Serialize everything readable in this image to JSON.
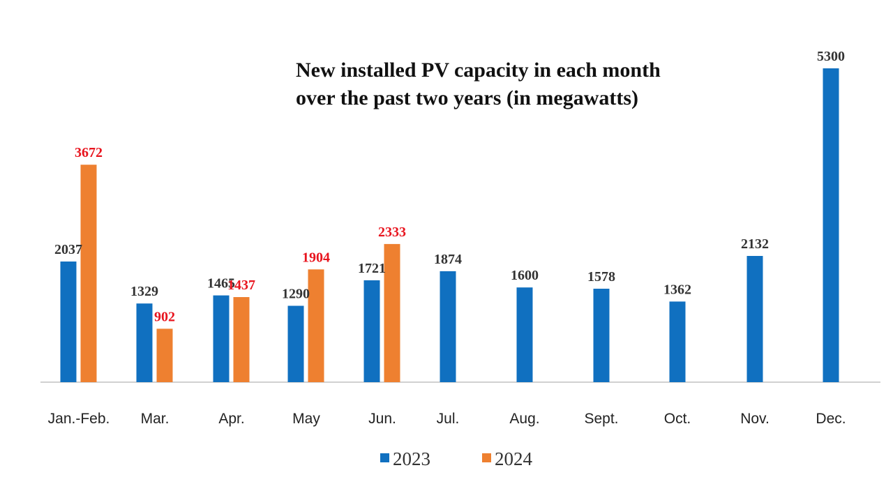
{
  "chart_data": {
    "type": "bar",
    "title_lines": [
      "New installed PV capacity in each month",
      "over the past two years (in megawatts)"
    ],
    "categories": [
      "Jan.-Feb.",
      "Mar.",
      "Apr.",
      "May",
      "Jun.",
      "Jul.",
      "Aug.",
      "Sept.",
      "Oct.",
      "Nov.",
      "Dec."
    ],
    "series": [
      {
        "name": "2023",
        "color": "#1070c0",
        "label_color": "#333333",
        "values": [
          2037,
          1329,
          1465,
          1290,
          1721,
          1874,
          1600,
          1578,
          1362,
          2132,
          5300
        ]
      },
      {
        "name": "2024",
        "color": "#ee8030",
        "label_color": "#e8141e",
        "values": [
          3672,
          902,
          1437,
          1904,
          2333,
          null,
          null,
          null,
          null,
          null,
          null
        ]
      }
    ],
    "ylim": [
      0,
      5300
    ],
    "grid": false,
    "legend_position": "bottom"
  }
}
